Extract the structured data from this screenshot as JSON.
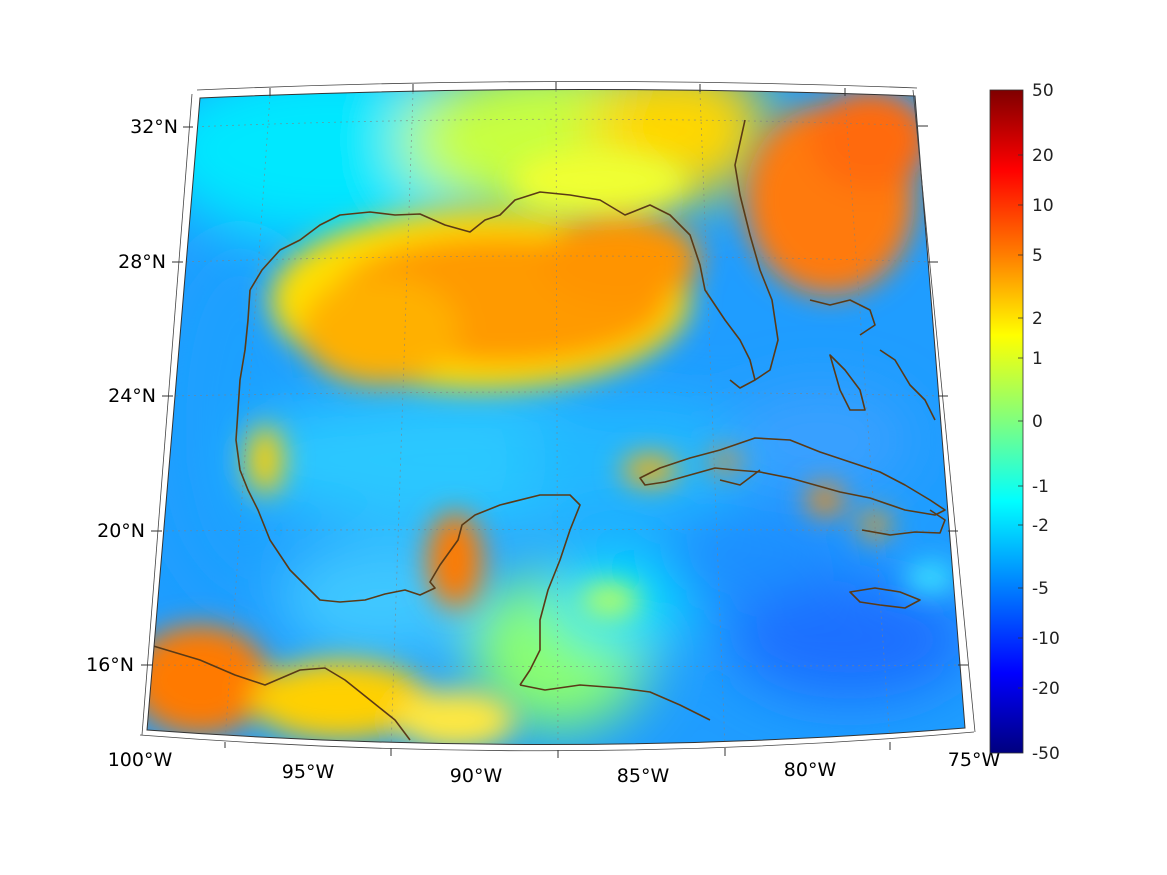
{
  "map": {
    "region": "Gulf of Mexico and Caribbean",
    "lon_range": [
      -100,
      -75
    ],
    "lat_range": [
      14,
      33
    ],
    "lon_ticks": [
      "100°W",
      "95°W",
      "90°W",
      "85°W",
      "80°W",
      "75°W"
    ],
    "lat_ticks": [
      "32°N",
      "28°N",
      "24°N",
      "20°N",
      "16°N"
    ],
    "coastline_color": "#5a3a16"
  },
  "colorbar": {
    "labels": [
      "50",
      "20",
      "10",
      "5",
      "2",
      "1",
      "0",
      "-1",
      "-2",
      "-5",
      "-10",
      "-20",
      "-50"
    ],
    "colormap": "jet",
    "colors": [
      "#00007f",
      "#0000ff",
      "#007fff",
      "#00ffff",
      "#7fff7f",
      "#ffff00",
      "#ff7f00",
      "#ff0000",
      "#7f0000"
    ]
  },
  "chart_data": {
    "type": "heatmap",
    "value_levels": [
      50,
      20,
      10,
      5,
      2,
      1,
      0,
      -1,
      -2,
      -5,
      -10,
      -20,
      -50
    ],
    "scale": "symmetric nonlinear"
  }
}
